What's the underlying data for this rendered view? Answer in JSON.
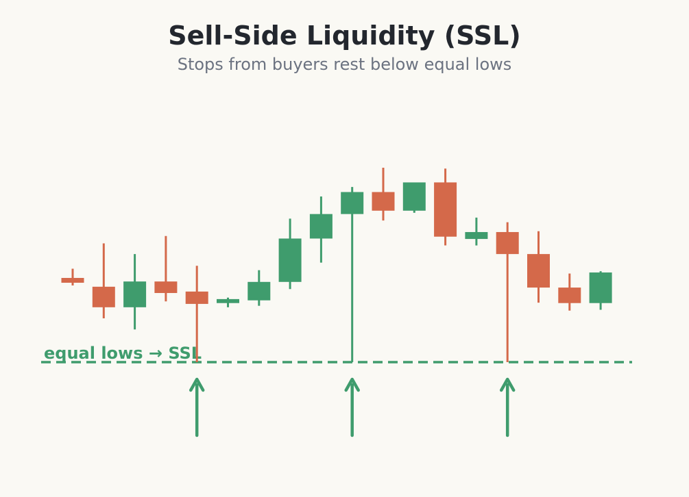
{
  "title": "Sell-Side Liquidity (SSL)",
  "subtitle": "Stops from buyers rest below equal lows",
  "colors": {
    "background": "#faf9f4",
    "bullish": "#3f9c6d",
    "bearish": "#d4694a",
    "title": "#23272e",
    "subtitle": "#6b7280"
  },
  "chart_data": {
    "type": "candlestick",
    "title": "Sell-Side Liquidity (SSL)",
    "subtitle": "Stops from buyers rest below equal lows",
    "xlabel": "",
    "ylabel": "",
    "grid": false,
    "ylim": [
      0,
      100
    ],
    "candles": [
      {
        "open": 40.2,
        "high": 44.6,
        "low": 36.6,
        "close": 37.9
      },
      {
        "open": 36.0,
        "high": 56.7,
        "low": 20.9,
        "close": 26.2
      },
      {
        "open": 26.2,
        "high": 51.6,
        "low": 15.6,
        "close": 38.5
      },
      {
        "open": 38.5,
        "high": 60.2,
        "low": 29.0,
        "close": 33.0
      },
      {
        "open": 33.7,
        "high": 46.0,
        "low": 0.0,
        "close": 27.8
      },
      {
        "open": 28.2,
        "high": 30.8,
        "low": 26.2,
        "close": 30.1
      },
      {
        "open": 29.5,
        "high": 43.9,
        "low": 26.9,
        "close": 38.3
      },
      {
        "open": 38.3,
        "high": 68.5,
        "low": 34.9,
        "close": 59.0
      },
      {
        "open": 59.0,
        "high": 79.1,
        "low": 47.5,
        "close": 70.7
      },
      {
        "open": 70.7,
        "high": 83.6,
        "low": 0.0,
        "close": 81.2
      },
      {
        "open": 81.2,
        "high": 92.8,
        "low": 67.6,
        "close": 72.3
      },
      {
        "open": 72.3,
        "high": 85.4,
        "low": 71.3,
        "close": 85.8
      },
      {
        "open": 85.8,
        "high": 92.4,
        "low": 55.7,
        "close": 59.9
      },
      {
        "open": 58.8,
        "high": 69.0,
        "low": 55.7,
        "close": 62.1
      },
      {
        "open": 62.1,
        "high": 66.8,
        "low": 0.0,
        "close": 51.6
      },
      {
        "open": 51.6,
        "high": 62.5,
        "low": 28.4,
        "close": 35.6
      },
      {
        "open": 35.6,
        "high": 42.3,
        "low": 24.6,
        "close": 28.2
      },
      {
        "open": 28.2,
        "high": 43.4,
        "low": 25.0,
        "close": 42.8
      }
    ],
    "ssl_level": 0.0,
    "annotations": [
      {
        "text": "equal lows → SSL",
        "type": "level-label"
      }
    ],
    "arrows_at": [
      4,
      9,
      14
    ]
  }
}
